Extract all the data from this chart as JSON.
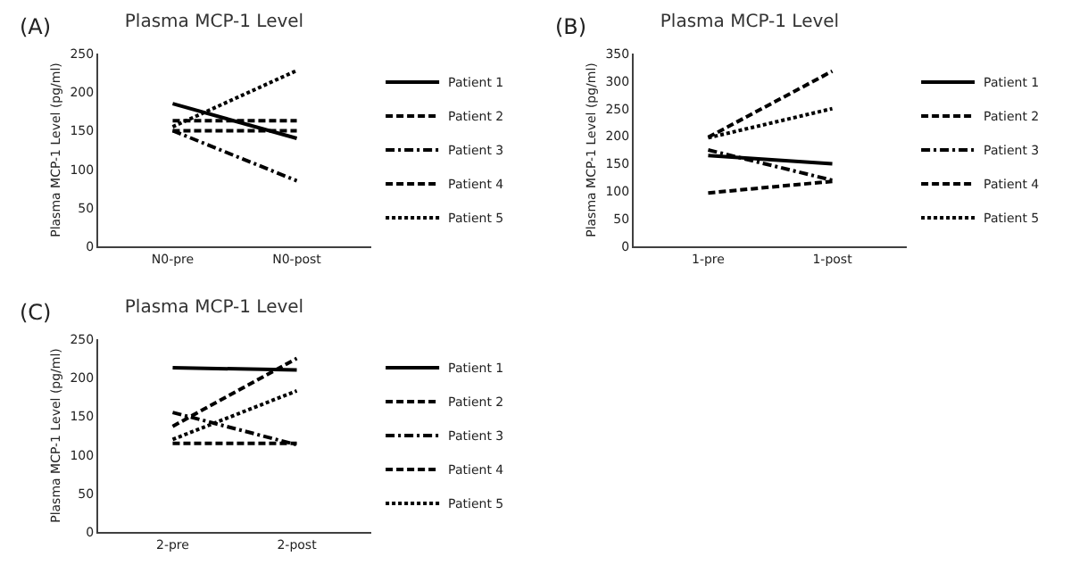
{
  "chart_data": [
    {
      "type": "line",
      "title": "Plasma MCP-1 Level",
      "ylabel": "Plasma MCP-1 Level (pg/ml)",
      "annotations": [
        "(A)"
      ],
      "categories": [
        "N0-pre",
        "N0-post"
      ],
      "ylim": [
        0,
        250
      ],
      "yticks": [
        0,
        50,
        100,
        150,
        200,
        250
      ],
      "grid": false,
      "legend": "right",
      "marker": "none",
      "series": [
        {
          "name": "Patient 1",
          "color": "#000000",
          "line_style": "solid",
          "values": [
            185,
            140
          ]
        },
        {
          "name": "Patient 2",
          "color": "#000000",
          "line_style": "dashed",
          "values": [
            150,
            150
          ]
        },
        {
          "name": "Patient 3",
          "color": "#000000",
          "line_style": "dashdot",
          "values": [
            150,
            85
          ]
        },
        {
          "name": "Patient 4",
          "color": "#000000",
          "line_style": "dashed",
          "values": [
            163,
            163
          ]
        },
        {
          "name": "Patient 5",
          "color": "#000000",
          "line_style": "dotted",
          "values": [
            155,
            228
          ]
        }
      ]
    },
    {
      "type": "line",
      "title": "Plasma MCP-1 Level",
      "ylabel": "Plasma MCP-1 Level (pg/ml)",
      "annotations": [
        "(B)"
      ],
      "categories": [
        "1-pre",
        "1-post"
      ],
      "ylim": [
        0,
        350
      ],
      "yticks": [
        0,
        50,
        100,
        150,
        200,
        250,
        300,
        350
      ],
      "grid": false,
      "legend": "right",
      "marker": "none",
      "series": [
        {
          "name": "Patient 1",
          "color": "#000000",
          "line_style": "solid",
          "values": [
            165,
            150
          ]
        },
        {
          "name": "Patient 2",
          "color": "#000000",
          "line_style": "dashed",
          "values": [
            198,
            318
          ]
        },
        {
          "name": "Patient 3",
          "color": "#000000",
          "line_style": "dashdot",
          "values": [
            175,
            120
          ]
        },
        {
          "name": "Patient 4",
          "color": "#000000",
          "line_style": "dashed",
          "values": [
            97,
            118
          ]
        },
        {
          "name": "Patient 5",
          "color": "#000000",
          "line_style": "dotted",
          "values": [
            197,
            250
          ]
        }
      ]
    },
    {
      "type": "line",
      "title": "Plasma MCP-1 Level",
      "ylabel": "Plasma MCP-1 Level (pg/ml)",
      "annotations": [
        "(C)"
      ],
      "categories": [
        "2-pre",
        "2-post"
      ],
      "ylim": [
        0,
        250
      ],
      "yticks": [
        0,
        50,
        100,
        150,
        200,
        250
      ],
      "grid": false,
      "legend": "right",
      "marker": "none",
      "series": [
        {
          "name": "Patient 1",
          "color": "#000000",
          "line_style": "solid",
          "values": [
            213,
            210
          ]
        },
        {
          "name": "Patient 2",
          "color": "#000000",
          "line_style": "dashed",
          "values": [
            137,
            225
          ]
        },
        {
          "name": "Patient 3",
          "color": "#000000",
          "line_style": "dashdot",
          "values": [
            155,
            113
          ]
        },
        {
          "name": "Patient 4",
          "color": "#000000",
          "line_style": "dashed",
          "values": [
            115,
            115
          ]
        },
        {
          "name": "Patient 5",
          "color": "#000000",
          "line_style": "dotted",
          "values": [
            120,
            183
          ]
        }
      ]
    }
  ]
}
